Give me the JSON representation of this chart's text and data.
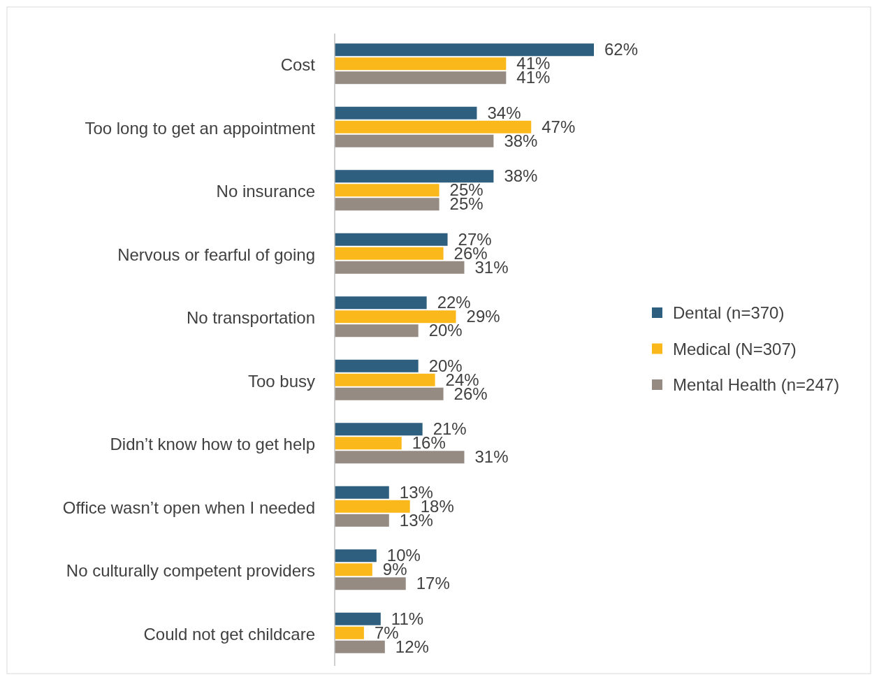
{
  "chart_data": {
    "type": "bar",
    "orientation": "horizontal",
    "legend": "right",
    "categories": [
      "Cost",
      "Too long to get an appointment",
      "No insurance",
      "Nervous or fearful of going",
      "No transportation",
      "Too busy",
      "Didn’t know how to get help",
      "Office wasn’t open when I needed",
      "No culturally competent providers",
      "Could not get childcare"
    ],
    "series": [
      {
        "name": "Dental (n=370)",
        "color": "#2e5f7e",
        "values": [
          62,
          34,
          38,
          27,
          22,
          20,
          21,
          13,
          10,
          11
        ],
        "value_labels": [
          "62%",
          "34%",
          "38%",
          "27%",
          "22%",
          "20%",
          "21%",
          "13%",
          "10%",
          "11%"
        ]
      },
      {
        "name": "Medical (N=307)",
        "color": "#fbb81b",
        "values": [
          41,
          47,
          25,
          26,
          29,
          24,
          16,
          18,
          9,
          7
        ],
        "value_labels": [
          "41%",
          "47%",
          "25%",
          "26%",
          "29%",
          "24%",
          "16%",
          "18%",
          "9%",
          "7%"
        ]
      },
      {
        "name": "Mental Health (n=247)",
        "color": "#968b83",
        "values": [
          41,
          38,
          25,
          31,
          20,
          26,
          31,
          13,
          17,
          12
        ],
        "value_labels": [
          "41%",
          "38%",
          "25%",
          "31%",
          "20%",
          "26%",
          "31%",
          "13%",
          "17%",
          "12%"
        ]
      }
    ]
  }
}
